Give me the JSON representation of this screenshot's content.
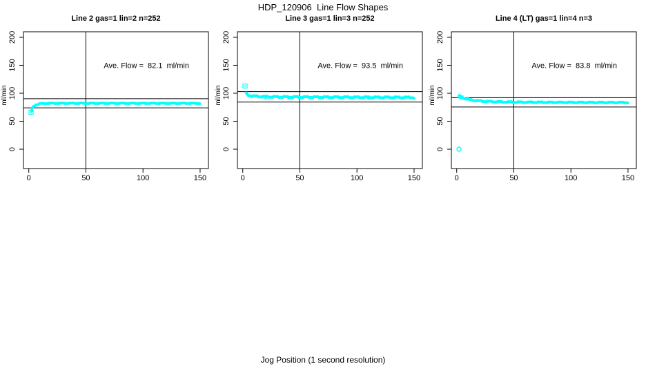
{
  "page": {
    "title": "HDP_120906  Line Flow Shapes",
    "xlabel": "Jog Position (1 second resolution)"
  },
  "colors": {
    "background": "#FFFFFF",
    "axis": "#000000",
    "marker": "#00FFFF"
  },
  "chart_data": [
    {
      "type": "scatter",
      "title": "Line 2 gas=1 lin=2 n=252",
      "ylabel": "ml/min",
      "annotation": "Ave. Flow =  82.1  ml/min",
      "ave_flow_ml_min": 82.1,
      "n_points": 252,
      "xticks": [
        0,
        50,
        100,
        150
      ],
      "yticks": [
        0,
        50,
        100,
        150,
        200
      ],
      "xlim": [
        -5,
        157
      ],
      "ylim": [
        -35,
        210
      ],
      "vline_x": 50,
      "ref_lines_y": [
        90.3,
        73.9
      ],
      "outliers": [
        [
          2,
          66
        ]
      ],
      "outlier_marker": "square",
      "profile": [
        [
          2.5,
          70
        ],
        [
          3,
          73
        ],
        [
          4,
          76
        ],
        [
          5,
          78
        ],
        [
          6,
          79.2
        ],
        [
          8,
          80.5
        ],
        [
          10,
          81.2
        ],
        [
          14,
          81.8
        ],
        [
          20,
          82
        ],
        [
          150,
          82
        ]
      ],
      "extra_points": [
        [
          2.5,
          68.5
        ],
        [
          3,
          71
        ]
      ],
      "band_jitter": 0.55
    },
    {
      "type": "scatter",
      "title": "Line 3 gas=1 lin=3 n=252",
      "ylabel": "ml/min",
      "annotation": "Ave. Flow =  93.5  ml/min",
      "ave_flow_ml_min": 93.5,
      "n_points": 252,
      "xticks": [
        0,
        50,
        100,
        150
      ],
      "yticks": [
        0,
        50,
        100,
        150,
        200
      ],
      "xlim": [
        -5,
        157
      ],
      "ylim": [
        -35,
        210
      ],
      "vline_x": 50,
      "ref_lines_y": [
        102.9,
        84.2
      ],
      "outliers": [
        [
          2,
          113
        ]
      ],
      "outlier_marker": "square",
      "profile": [
        [
          3,
          100
        ],
        [
          4,
          97.5
        ],
        [
          5,
          96.5
        ],
        [
          7,
          95.5
        ],
        [
          10,
          94.8
        ],
        [
          15,
          94.2
        ],
        [
          25,
          93.6
        ],
        [
          50,
          93.2
        ],
        [
          100,
          92.8
        ],
        [
          150,
          92.5
        ]
      ],
      "extra_points": [
        [
          3.5,
          99
        ],
        [
          20,
          91
        ],
        [
          40,
          90.8
        ],
        [
          70,
          90.9
        ],
        [
          110,
          91
        ]
      ],
      "band_jitter": 0.9
    },
    {
      "type": "scatter",
      "title": "Line 4 (LT) gas=1 lin=4 n=3",
      "ylabel": "ml/min",
      "annotation": "Ave. Flow =  83.8  ml/min",
      "ave_flow_ml_min": 83.8,
      "n_points": 3,
      "xticks": [
        0,
        50,
        100,
        150
      ],
      "yticks": [
        0,
        50,
        100,
        150,
        200
      ],
      "xlim": [
        -5,
        157
      ],
      "ylim": [
        -35,
        210
      ],
      "vline_x": 50,
      "ref_lines_y": [
        92.2,
        75.4
      ],
      "outliers": [
        [
          2,
          0
        ]
      ],
      "outlier_marker": "circle",
      "profile": [
        [
          2,
          95.5
        ],
        [
          3,
          94.2
        ],
        [
          5,
          92.2
        ],
        [
          8,
          90.2
        ],
        [
          12,
          88.2
        ],
        [
          18,
          86.6
        ],
        [
          25,
          85.5
        ],
        [
          35,
          84.7
        ],
        [
          50,
          84.2
        ],
        [
          80,
          83.8
        ],
        [
          120,
          83.6
        ],
        [
          150,
          83.5
        ]
      ],
      "extra_points": [
        [
          2,
          93
        ],
        [
          2.5,
          96.5
        ],
        [
          3,
          92
        ],
        [
          4,
          91
        ],
        [
          5,
          94
        ],
        [
          6,
          90.5
        ]
      ],
      "band_jitter": 0.7
    }
  ]
}
